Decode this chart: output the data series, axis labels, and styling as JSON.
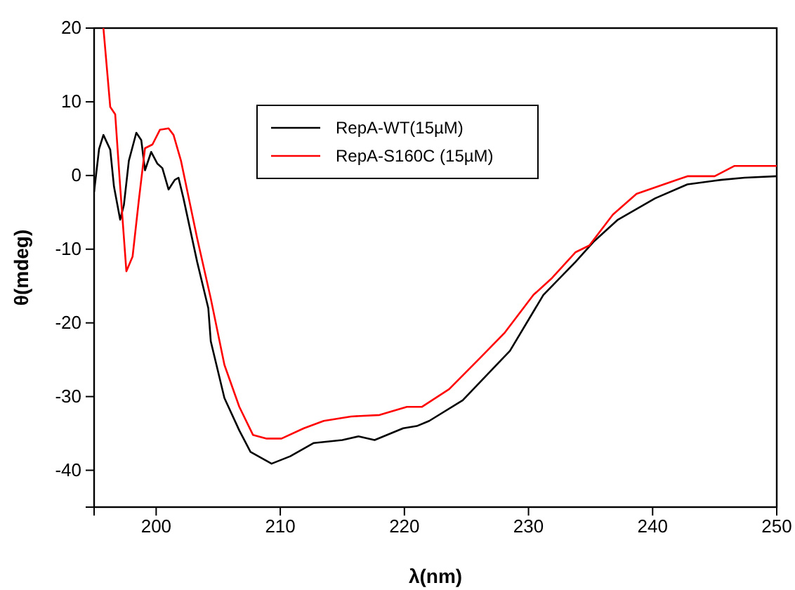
{
  "chart_data": {
    "type": "line",
    "xlabel": "λ(nm)",
    "ylabel": "θ(mdeg)",
    "xlim": [
      195,
      250
    ],
    "ylim": [
      -45,
      20
    ],
    "xticks": [
      200,
      210,
      220,
      230,
      240,
      250
    ],
    "yticks": [
      -40,
      -30,
      -20,
      -10,
      0,
      10,
      20
    ],
    "grid": false,
    "legend": "top",
    "marker": "none",
    "line_style": "solid",
    "series": [
      {
        "name": "RepA-WT(15µM)",
        "color": "#000000",
        "x": [
          195,
          195.4,
          195.75,
          196.3,
          196.6,
          197.1,
          197.4,
          197.8,
          198.4,
          198.8,
          199.1,
          199.6,
          200.1,
          200.5,
          201,
          201.5,
          201.8,
          202.2,
          203.3,
          204.2,
          204.4,
          205.5,
          206.7,
          207.6,
          209.3,
          210.8,
          212.7,
          215,
          216.3,
          217.6,
          219.9,
          221,
          222,
          224.7,
          228.5,
          231.2,
          233.8,
          235.3,
          237.2,
          240.2,
          242.8,
          245.5,
          247.4,
          250
        ],
        "values": [
          -2.2,
          3.6,
          5.5,
          3.5,
          -1.5,
          -6,
          -4,
          2,
          5.8,
          4.8,
          0.7,
          3.2,
          1.6,
          1,
          -1.9,
          -0.6,
          -0.3,
          -3.1,
          -11.7,
          -18,
          -22.5,
          -30.2,
          -34.6,
          -37.5,
          -39.1,
          -38.1,
          -36.3,
          -35.9,
          -35.4,
          -35.9,
          -34.3,
          -34,
          -33.3,
          -30.5,
          -23.8,
          -16.2,
          -11.7,
          -8.9,
          -6,
          -3.1,
          -1.2,
          -0.6,
          -0.3,
          -0.1
        ]
      },
      {
        "name": "RepA-S160C (15µM)",
        "color": "#ff0000",
        "x": [
          195.75,
          196.3,
          196.7,
          197.1,
          197.6,
          198.1,
          198.6,
          199.1,
          199.7,
          200.3,
          201,
          201.4,
          202,
          203.3,
          204.4,
          205.5,
          206.7,
          207.8,
          208.9,
          210.1,
          211.9,
          213.5,
          215.7,
          218,
          220.2,
          221.4,
          223.6,
          225.9,
          228.1,
          230.4,
          231.9,
          233.8,
          234.9,
          236.8,
          238.7,
          240.9,
          242.8,
          245,
          246.6,
          250
        ],
        "values": [
          20,
          9.3,
          8.3,
          -1.5,
          -13,
          -11,
          -3.4,
          3.7,
          4.2,
          6.2,
          6.4,
          5.5,
          2,
          -8.5,
          -16.7,
          -25.7,
          -31.4,
          -35.2,
          -35.7,
          -35.7,
          -34.3,
          -33.3,
          -32.7,
          -32.5,
          -31.4,
          -31.4,
          -29,
          -25.1,
          -21.3,
          -16.2,
          -13.9,
          -10.4,
          -9.5,
          -5.3,
          -2.5,
          -1.2,
          -0.1,
          -0.1,
          1.3,
          1.3
        ]
      }
    ]
  }
}
